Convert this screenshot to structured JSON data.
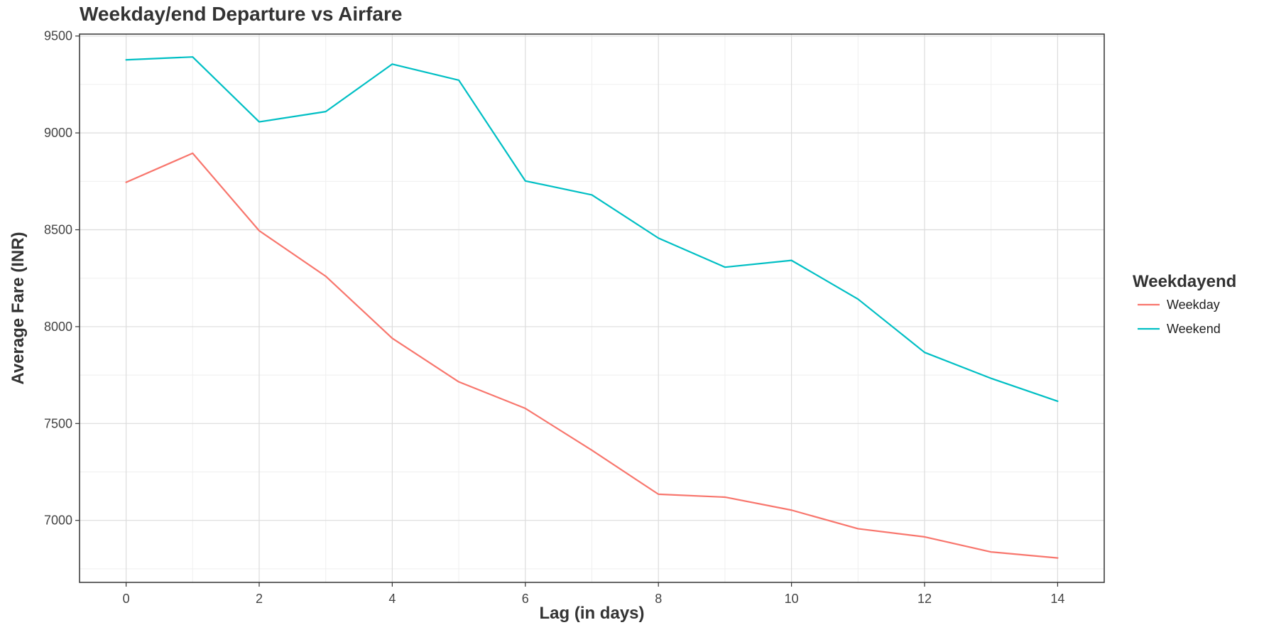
{
  "chart_data": {
    "type": "line",
    "title": "Weekday/end Departure vs Airfare",
    "xlabel": "Lag (in days)",
    "ylabel": "Average Fare (INR)",
    "x": [
      0,
      1,
      2,
      3,
      4,
      5,
      6,
      7,
      8,
      9,
      10,
      11,
      12,
      13,
      14
    ],
    "xlim": [
      -0.7,
      14.7
    ],
    "ylim": [
      6680,
      9510
    ],
    "x_ticks": [
      0,
      2,
      4,
      6,
      8,
      10,
      12,
      14
    ],
    "y_ticks": [
      7000,
      7500,
      8000,
      8500,
      9000,
      9500
    ],
    "x_tick_labels": [
      "0",
      "2",
      "4",
      "6",
      "8",
      "10",
      "12",
      "14"
    ],
    "y_tick_labels": [
      "7000",
      "7500",
      "8000",
      "8500",
      "9000",
      "9500"
    ],
    "grid": true,
    "legend": {
      "title": "Weekdayend",
      "position": "right"
    },
    "series": [
      {
        "name": "Weekday",
        "color": "#F8766D",
        "values": [
          8745,
          8895,
          8495,
          8260,
          7940,
          7715,
          7578,
          7362,
          7135,
          7120,
          7053,
          6957,
          6915,
          6837,
          6806
        ]
      },
      {
        "name": "Weekend",
        "color": "#00BFC4",
        "values": [
          9377,
          9392,
          9057,
          9110,
          9355,
          9272,
          8752,
          8680,
          8457,
          8307,
          8342,
          8142,
          7867,
          7733,
          7615
        ]
      }
    ]
  }
}
